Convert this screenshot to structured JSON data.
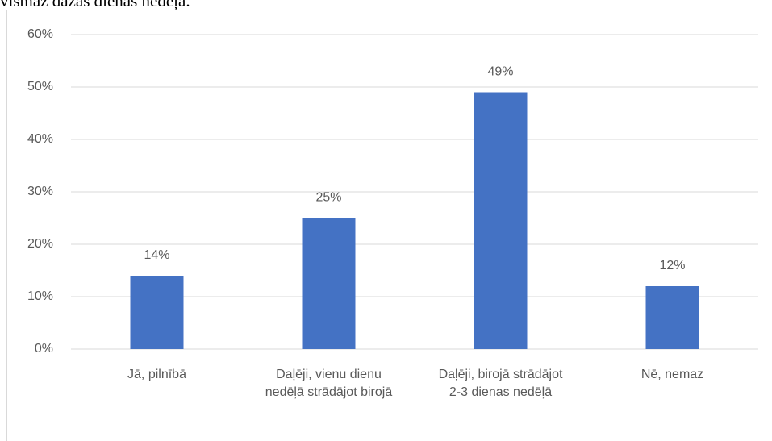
{
  "text_above": "vismaz dažas dienas nedēļā.",
  "chart_data": {
    "type": "bar",
    "categories": [
      "Jā, pilnībā",
      "Daļēji, vienu dienu nedēļā strādājot birojā",
      "Daļēji, birojā strādājot 2-3 dienas nedēļā",
      "Nē, nemaz"
    ],
    "values": [
      14,
      25,
      49,
      12
    ],
    "value_labels": [
      "14%",
      "25%",
      "49%",
      "12%"
    ],
    "color": "#4472c4",
    "ylim": [
      0,
      60
    ],
    "yticks": [
      {
        "value": 0,
        "label": "0%"
      },
      {
        "value": 10,
        "label": "10%"
      },
      {
        "value": 20,
        "label": "20%"
      },
      {
        "value": 30,
        "label": "30%"
      },
      {
        "value": 40,
        "label": "40%"
      },
      {
        "value": 50,
        "label": "50%"
      },
      {
        "value": 60,
        "label": "60%"
      }
    ],
    "grid": true
  }
}
